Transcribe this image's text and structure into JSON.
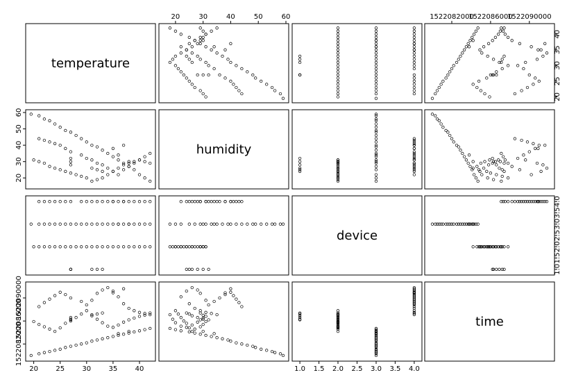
{
  "chart_data": {
    "type": "scatter",
    "subtype": "pairs-matrix",
    "variables": [
      "temperature",
      "humidity",
      "device",
      "time"
    ],
    "grid": false,
    "legend": "none",
    "marker": "open-circle",
    "axes": {
      "temperature": {
        "range": [
          19,
          42.5
        ],
        "ticks": [
          "20",
          "25",
          "30",
          "35",
          "40"
        ],
        "tick_values": [
          20,
          25,
          30,
          35,
          40
        ]
      },
      "humidity": {
        "range": [
          15,
          60
        ],
        "ticks": [
          "20",
          "30",
          "40",
          "50",
          "60"
        ],
        "tick_values": [
          20,
          30,
          40,
          50,
          60
        ]
      },
      "device": {
        "range": [
          0.87,
          4.13
        ],
        "ticks": [
          "1.0",
          "1.5",
          "2.0",
          "2.5",
          "3.0",
          "3.5",
          "4.0"
        ],
        "tick_values": [
          1.0,
          1.5,
          2.0,
          2.5,
          3.0,
          3.5,
          4.0
        ]
      },
      "time": {
        "range": [
          1522079500,
          1522092300
        ],
        "ticks": [
          "1522082000",
          "1522086000",
          "1522090000"
        ],
        "tick_values": [
          1522082000,
          1522086000,
          1522090000
        ]
      }
    },
    "series": [
      {
        "device": 1,
        "points": [
          [
            27,
            32,
            1522086200
          ],
          [
            27,
            30,
            1522086300
          ],
          [
            27,
            28,
            1522086600
          ],
          [
            31,
            26,
            1522086900
          ],
          [
            32,
            25,
            1522087200
          ],
          [
            33,
            24,
            1522087400
          ]
        ]
      },
      {
        "device": 2,
        "points": [
          [
            20,
            31,
            1522085900
          ],
          [
            21,
            30,
            1522085400
          ],
          [
            22,
            29,
            1522085000
          ],
          [
            23,
            27,
            1522084600
          ],
          [
            24,
            26,
            1522084200
          ],
          [
            25,
            25,
            1522084800
          ],
          [
            26,
            24,
            1522085600
          ],
          [
            27,
            23,
            1522086000
          ],
          [
            28,
            22,
            1522086600
          ],
          [
            29,
            21,
            1522087200
          ],
          [
            30,
            20,
            1522087800
          ],
          [
            31,
            18,
            1522087100
          ],
          [
            32,
            19,
            1522086300
          ],
          [
            33,
            20,
            1522085700
          ],
          [
            34,
            22,
            1522085100
          ],
          [
            35,
            24,
            1522084900
          ],
          [
            36,
            26,
            1522085300
          ],
          [
            37,
            28,
            1522085800
          ],
          [
            38,
            29,
            1522086200
          ],
          [
            39,
            30,
            1522086500
          ],
          [
            40,
            31,
            1522086800
          ],
          [
            41,
            30,
            1522087000
          ],
          [
            42,
            29,
            1522087400
          ]
        ]
      },
      {
        "device": 3,
        "points": [
          [
            19.5,
            59,
            1522080000
          ],
          [
            21,
            58,
            1522080300
          ],
          [
            22,
            56,
            1522080500
          ],
          [
            23,
            55,
            1522080700
          ],
          [
            24,
            53,
            1522080900
          ],
          [
            25,
            51,
            1522081100
          ],
          [
            26,
            49,
            1522081400
          ],
          [
            27,
            48,
            1522081600
          ],
          [
            28,
            46,
            1522081800
          ],
          [
            29,
            44,
            1522082000
          ],
          [
            30,
            42,
            1522082200
          ],
          [
            31,
            40,
            1522082500
          ],
          [
            32,
            39,
            1522082700
          ],
          [
            33,
            37,
            1522082900
          ],
          [
            34,
            35,
            1522083100
          ],
          [
            35,
            33,
            1522083300
          ],
          [
            36,
            31,
            1522083500
          ],
          [
            37,
            29,
            1522083700
          ],
          [
            38,
            27,
            1522083900
          ],
          [
            39,
            25,
            1522084100
          ],
          [
            40,
            22,
            1522084300
          ],
          [
            41,
            20,
            1522084500
          ],
          [
            42,
            18,
            1522084700
          ],
          [
            36,
            34,
            1522083800
          ],
          [
            38,
            30,
            1522084200
          ]
        ]
      },
      {
        "device": 4,
        "points": [
          [
            21,
            44,
            1522088500
          ],
          [
            22,
            43,
            1522089200
          ],
          [
            23,
            42,
            1522089800
          ],
          [
            24,
            41,
            1522090400
          ],
          [
            25,
            40,
            1522091000
          ],
          [
            26,
            38,
            1522090600
          ],
          [
            27,
            36,
            1522090000
          ],
          [
            29,
            34,
            1522089400
          ],
          [
            30,
            32,
            1522088800
          ],
          [
            31,
            31,
            1522089600
          ],
          [
            32,
            29,
            1522090800
          ],
          [
            33,
            28,
            1522091400
          ],
          [
            34,
            26,
            1522091800
          ],
          [
            35,
            24,
            1522091200
          ],
          [
            36,
            22,
            1522090200
          ],
          [
            37,
            25,
            1522089000
          ],
          [
            38,
            27,
            1522088200
          ],
          [
            39,
            29,
            1522087800
          ],
          [
            40,
            31,
            1522087500
          ],
          [
            41,
            33,
            1522087300
          ],
          [
            42,
            35,
            1522087100
          ],
          [
            35,
            38,
            1522090900
          ],
          [
            37,
            40,
            1522091600
          ]
        ]
      }
    ]
  }
}
